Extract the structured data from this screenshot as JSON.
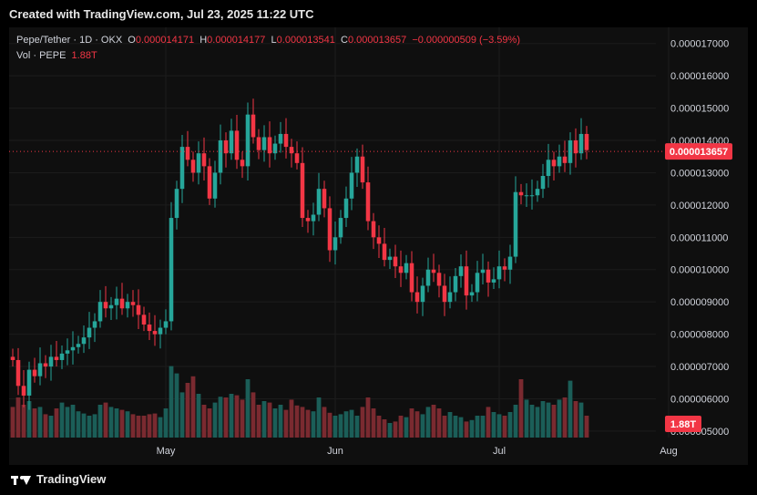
{
  "header": {
    "created": "Created with TradingView.com, Jul 23, 2025 11:22 UTC"
  },
  "footer": {
    "brand": "TradingView"
  },
  "legend": {
    "symbol": "Pepe/Tether · 1D · OKX",
    "o_label": "O",
    "o_value": "0.000014171",
    "h_label": "H",
    "h_value": "0.000014177",
    "l_label": "L",
    "l_value": "0.000013541",
    "c_label": "C",
    "c_value": "0.000013657",
    "change": "−0.000000509 (−3.59%)",
    "vol_label": "Vol · PEPE",
    "vol_value": "1.88T"
  },
  "colors": {
    "up": "#26a69a",
    "down": "#f23645",
    "vol_up": "#1b5e58",
    "vol_down": "#7a2a30",
    "axis_text": "#d1d4dc",
    "grid": "#1c1c1c"
  },
  "chart_data": {
    "type": "candlestick",
    "title": "Pepe/Tether · 1D · OKX",
    "y_axis": {
      "ticks": [
        "0.000017000",
        "0.000016000",
        "0.000015000",
        "0.000014000",
        "0.000013000",
        "0.000012000",
        "0.000011000",
        "0.000010000",
        "0.000009000",
        "0.000008000",
        "0.000007000",
        "0.000006000",
        "0.000005000"
      ],
      "tick_values": [
        1.7e-05,
        1.6e-05,
        1.5e-05,
        1.4e-05,
        1.3e-05,
        1.2e-05,
        1.1e-05,
        1e-05,
        9e-06,
        8e-06,
        7e-06,
        6e-06,
        5e-06
      ],
      "range": [
        4.8e-06,
        1.75e-05
      ]
    },
    "x_axis": {
      "labels": [
        "May",
        "Jun",
        "Jul",
        "Aug"
      ],
      "label_dates": [
        "2025-05-01",
        "2025-06-01",
        "2025-07-01",
        "2025-08-01"
      ]
    },
    "start_date": "2025-04-03",
    "last_price_label": "0.000013657",
    "last_price": 1.3657e-05,
    "last_volume_label": "1.88T",
    "candles_close": [
      7.2,
      6.4,
      6.1,
      6.9,
      6.7,
      7.1,
      7.0,
      7.3,
      7.2,
      7.4,
      7.5,
      7.6,
      7.7,
      7.9,
      8.2,
      8.4,
      9.0,
      8.8,
      8.9,
      9.1,
      8.8,
      9.0,
      8.9,
      8.6,
      8.3,
      8.1,
      8.0,
      8.2,
      8.4,
      11.6,
      12.5,
      13.8,
      13.4,
      13.0,
      13.6,
      13.2,
      12.2,
      13.0,
      14.0,
      13.6,
      14.3,
      13.4,
      13.2,
      14.8,
      14.1,
      13.7,
      14.1,
      13.6,
      13.9,
      14.2,
      13.8,
      13.6,
      13.3,
      11.6,
      11.5,
      11.7,
      12.5,
      11.9,
      10.6,
      11.0,
      11.6,
      12.2,
      13.0,
      13.5,
      12.7,
      11.5,
      11.0,
      10.8,
      10.3,
      10.4,
      10.1,
      9.9,
      10.2,
      9.3,
      9.0,
      9.5,
      10.0,
      9.9,
      9.5,
      9.0,
      9.3,
      9.8,
      10.1,
      9.2,
      9.3,
      9.9,
      10.0,
      9.6,
      9.7,
      10.1,
      10.0,
      10.4,
      12.4,
      12.3,
      12.3,
      12.3,
      12.5,
      12.9,
      13.4,
      13.2,
      13.5,
      13.3,
      14.0,
      13.6,
      14.2,
      13.7
    ],
    "candles_open_first": 7.3,
    "volume_pct": [
      0.42,
      0.55,
      0.45,
      0.5,
      0.4,
      0.42,
      0.32,
      0.3,
      0.4,
      0.48,
      0.42,
      0.45,
      0.36,
      0.33,
      0.3,
      0.32,
      0.45,
      0.48,
      0.42,
      0.4,
      0.38,
      0.36,
      0.32,
      0.3,
      0.3,
      0.32,
      0.33,
      0.28,
      0.4,
      0.98,
      0.88,
      0.62,
      0.75,
      0.84,
      0.6,
      0.45,
      0.4,
      0.48,
      0.56,
      0.55,
      0.6,
      0.58,
      0.52,
      0.8,
      0.62,
      0.45,
      0.5,
      0.48,
      0.4,
      0.45,
      0.38,
      0.52,
      0.44,
      0.42,
      0.38,
      0.36,
      0.55,
      0.42,
      0.34,
      0.3,
      0.32,
      0.36,
      0.38,
      0.3,
      0.42,
      0.55,
      0.4,
      0.3,
      0.25,
      0.2,
      0.22,
      0.3,
      0.28,
      0.4,
      0.36,
      0.32,
      0.42,
      0.45,
      0.4,
      0.3,
      0.35,
      0.3,
      0.28,
      0.22,
      0.24,
      0.3,
      0.3,
      0.42,
      0.35,
      0.32,
      0.3,
      0.35,
      0.45,
      0.8,
      0.52,
      0.45,
      0.42,
      0.5,
      0.48,
      0.45,
      0.52,
      0.55,
      0.78,
      0.5,
      0.48,
      0.3
    ]
  }
}
